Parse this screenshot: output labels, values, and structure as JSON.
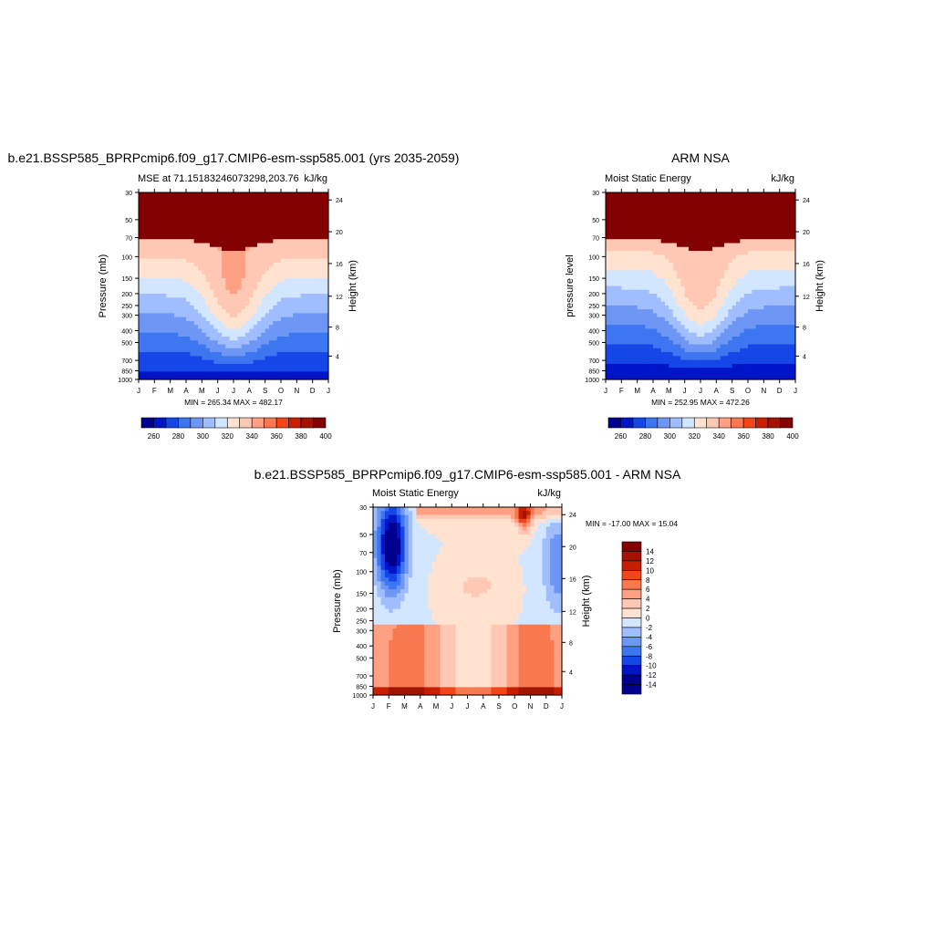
{
  "colors": {
    "mse_levels": [
      "#00008f",
      "#0014c8",
      "#1446e8",
      "#3c76f0",
      "#6e96f4",
      "#a0beff",
      "#d2e6ff",
      "#ffe2d0",
      "#ffc8b4",
      "#ffa082",
      "#f87850",
      "#f04618",
      "#c81e00",
      "#a01400",
      "#820000"
    ],
    "diff_levels": [
      "#00008f",
      "#0014c8",
      "#1446e8",
      "#3c76f0",
      "#6e96f4",
      "#a0beff",
      "#d2e6ff",
      "#ffe2d0",
      "#ffc8b4",
      "#ffa082",
      "#f87850",
      "#f04618",
      "#c81e00",
      "#a01400",
      "#820000"
    ]
  },
  "chart_data": [
    {
      "type": "heatmap",
      "title": "b.e21.BSSP585_BPRPcmip6.f09_g17.CMIP6-esm-ssp585.001 (yrs 2035-2059)",
      "subtitle_left": "MSE at 71.15183246073298,203.76",
      "units": "kJ/kg",
      "ylabel": "Pressure (mb)",
      "y2label": "Height (km)",
      "x_ticks": [
        "J",
        "F",
        "M",
        "A",
        "M",
        "J",
        "J",
        "A",
        "S",
        "O",
        "N",
        "D",
        "J"
      ],
      "y_ticks": [
        "30",
        "50",
        "70",
        "100",
        "150",
        "200",
        "250",
        "300",
        "400",
        "500",
        "700",
        "850",
        "1000"
      ],
      "y2_ticks": [
        "24",
        "20",
        "16",
        "12",
        "8",
        "4"
      ],
      "minmax": "MIN = 265.34 MAX = 482.17",
      "colorbar_labels": [
        "260",
        "280",
        "300",
        "320",
        "340",
        "360",
        "380",
        "400"
      ]
    },
    {
      "type": "heatmap",
      "title": "ARM NSA",
      "subtitle_left": "Moist Static Energy",
      "units": "kJ/kg",
      "ylabel": "pressure level",
      "y2label": "Height (km)",
      "x_ticks": [
        "J",
        "F",
        "M",
        "A",
        "M",
        "J",
        "J",
        "A",
        "S",
        "O",
        "N",
        "D",
        "J"
      ],
      "y_ticks": [
        "30",
        "50",
        "70",
        "100",
        "150",
        "200",
        "250",
        "300",
        "400",
        "500",
        "700",
        "850",
        "1000"
      ],
      "y2_ticks": [
        "24",
        "20",
        "16",
        "12",
        "8",
        "4"
      ],
      "minmax": "MIN = 252.95 MAX = 472.26",
      "colorbar_labels": [
        "260",
        "280",
        "300",
        "320",
        "340",
        "360",
        "380",
        "400"
      ]
    },
    {
      "type": "heatmap",
      "title": "b.e21.BSSP585_BPRPcmip6.f09_g17.CMIP6-esm-ssp585.001 - ARM NSA",
      "subtitle_left": "Moist Static Energy",
      "units": "kJ/kg",
      "ylabel": "Pressure (mb)",
      "y2label": "Height (km)",
      "x_ticks": [
        "J",
        "F",
        "M",
        "A",
        "M",
        "J",
        "J",
        "A",
        "S",
        "O",
        "N",
        "D",
        "J"
      ],
      "y_ticks": [
        "30",
        "50",
        "70",
        "100",
        "150",
        "200",
        "250",
        "300",
        "400",
        "500",
        "700",
        "850",
        "1000"
      ],
      "y2_ticks": [
        "24",
        "20",
        "16",
        "12",
        "8",
        "4"
      ],
      "minmax": "MIN = -17.00 MAX =  15.04",
      "colorbar_labels": [
        "14",
        "12",
        "10",
        "8",
        "6",
        "4",
        "2",
        "0",
        "-2",
        "-4",
        "-6",
        "-8",
        "-10",
        "-12",
        "-14"
      ]
    }
  ]
}
